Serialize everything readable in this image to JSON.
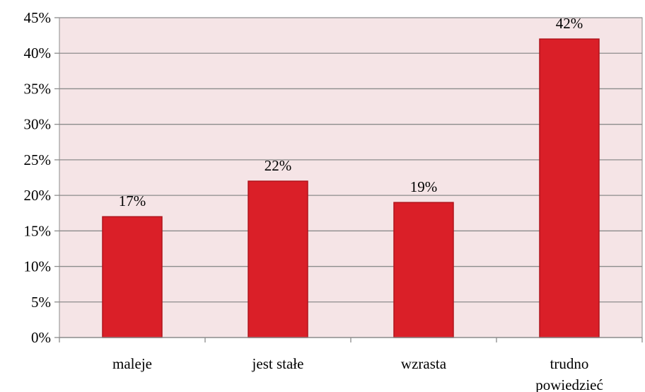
{
  "chart_data": {
    "type": "bar",
    "categories": [
      "maleje",
      "jest stałe",
      "wzrasta",
      "trudno powiedzieć"
    ],
    "category_lines": [
      [
        "maleje"
      ],
      [
        "jest stałe"
      ],
      [
        "wzrasta"
      ],
      [
        "trudno",
        "powiedzieć"
      ]
    ],
    "values": [
      17,
      22,
      19,
      42
    ],
    "value_labels": [
      "17%",
      "22%",
      "19%",
      "42%"
    ],
    "ylim": [
      0,
      45
    ],
    "yticks": [
      0,
      5,
      10,
      15,
      20,
      25,
      30,
      35,
      40,
      45
    ],
    "ytick_labels": [
      "0%",
      "5%",
      "10%",
      "15%",
      "20%",
      "25%",
      "30%",
      "35%",
      "40%",
      "45%"
    ],
    "grid": true,
    "colors": {
      "bar_fill": "#da1f28",
      "bar_stroke": "#b0141c",
      "plot_background": "#f5e4e6",
      "gridline": "#8c8c8c",
      "axis": "#8c8c8c"
    }
  }
}
